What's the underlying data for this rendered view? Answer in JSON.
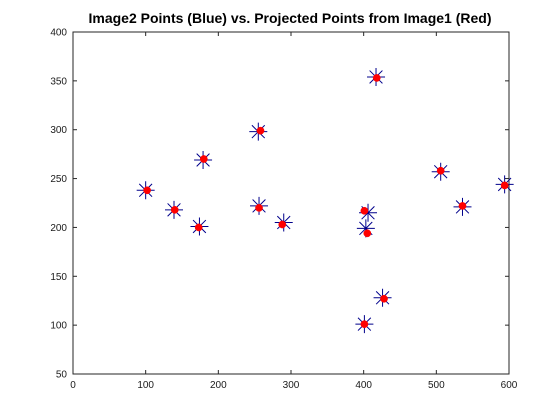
{
  "chart_data": {
    "type": "scatter",
    "title": "Image2 Points (Blue) vs. Projected Points from Image1 (Red)",
    "xlabel": "",
    "ylabel": "",
    "xlim": [
      0,
      600
    ],
    "ylim": [
      50,
      400
    ],
    "xticks": [
      0,
      100,
      200,
      300,
      400,
      500,
      600
    ],
    "yticks": [
      50,
      100,
      150,
      200,
      250,
      300,
      350,
      400
    ],
    "xtick_labels": [
      "0",
      "100",
      "200",
      "300",
      "400",
      "500",
      "600"
    ],
    "ytick_labels": [
      "50",
      "100",
      "150",
      "200",
      "250",
      "300",
      "350",
      "400"
    ],
    "grid": false,
    "legend": "none",
    "colors": {
      "blue": "#00008b",
      "red": "#ff0000",
      "axis": "#262626",
      "background": "#ffffff"
    },
    "series": [
      {
        "marker": "star",
        "color": "#00008b",
        "points": [
          [
            100,
            238
          ],
          [
            139,
            218
          ],
          [
            174,
            201
          ],
          [
            179,
            269
          ],
          [
            255,
            298
          ],
          [
            256,
            222
          ],
          [
            290,
            205
          ],
          [
            403,
            199
          ],
          [
            406,
            215
          ],
          [
            417,
            354
          ],
          [
            426,
            128
          ],
          [
            401,
            101
          ],
          [
            506,
            257
          ],
          [
            536,
            221
          ],
          [
            594,
            244
          ]
        ]
      },
      {
        "marker": "filled-circle",
        "color": "#ff0000",
        "points": [
          [
            102,
            238
          ],
          [
            140,
            218
          ],
          [
            173,
            200
          ],
          [
            180,
            270
          ],
          [
            258,
            299
          ],
          [
            256,
            220
          ],
          [
            288,
            203
          ],
          [
            405,
            194
          ],
          [
            401,
            217
          ],
          [
            418,
            353
          ],
          [
            428,
            127
          ],
          [
            401,
            101
          ],
          [
            506,
            258
          ],
          [
            536,
            222
          ],
          [
            594,
            243
          ]
        ]
      }
    ]
  }
}
